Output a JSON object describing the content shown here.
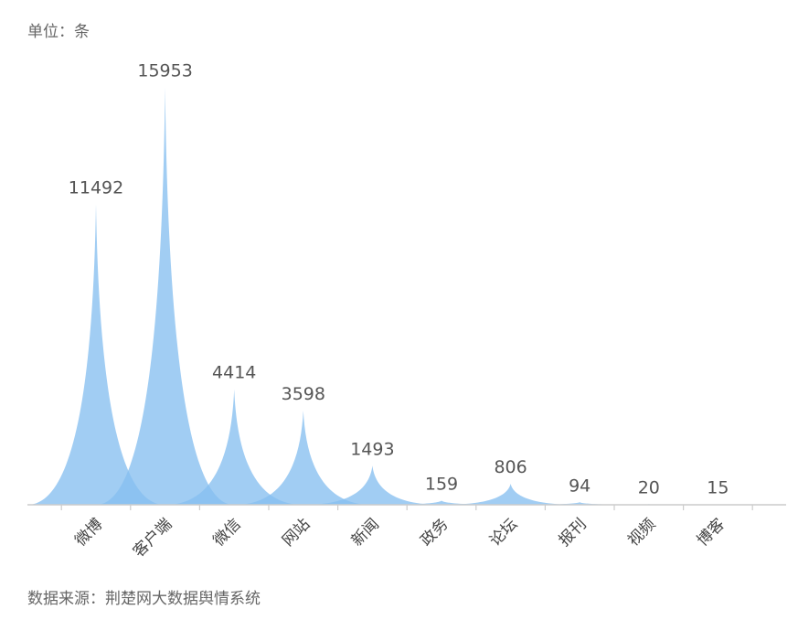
{
  "unit_label": "单位：条",
  "source_label": "数据来源：荆楚网大数据舆情系统",
  "chart_data": {
    "type": "area",
    "categories": [
      "微博",
      "客户端",
      "微信",
      "网站",
      "新闻",
      "政务",
      "论坛",
      "报刊",
      "视频",
      "博客"
    ],
    "values": [
      11492,
      15953,
      4414,
      3598,
      1493,
      159,
      806,
      94,
      20,
      15
    ],
    "ylim": [
      0,
      16500
    ],
    "color": "#86bff0",
    "axis_color": "#cccccc",
    "grid": false,
    "legend": "none"
  }
}
